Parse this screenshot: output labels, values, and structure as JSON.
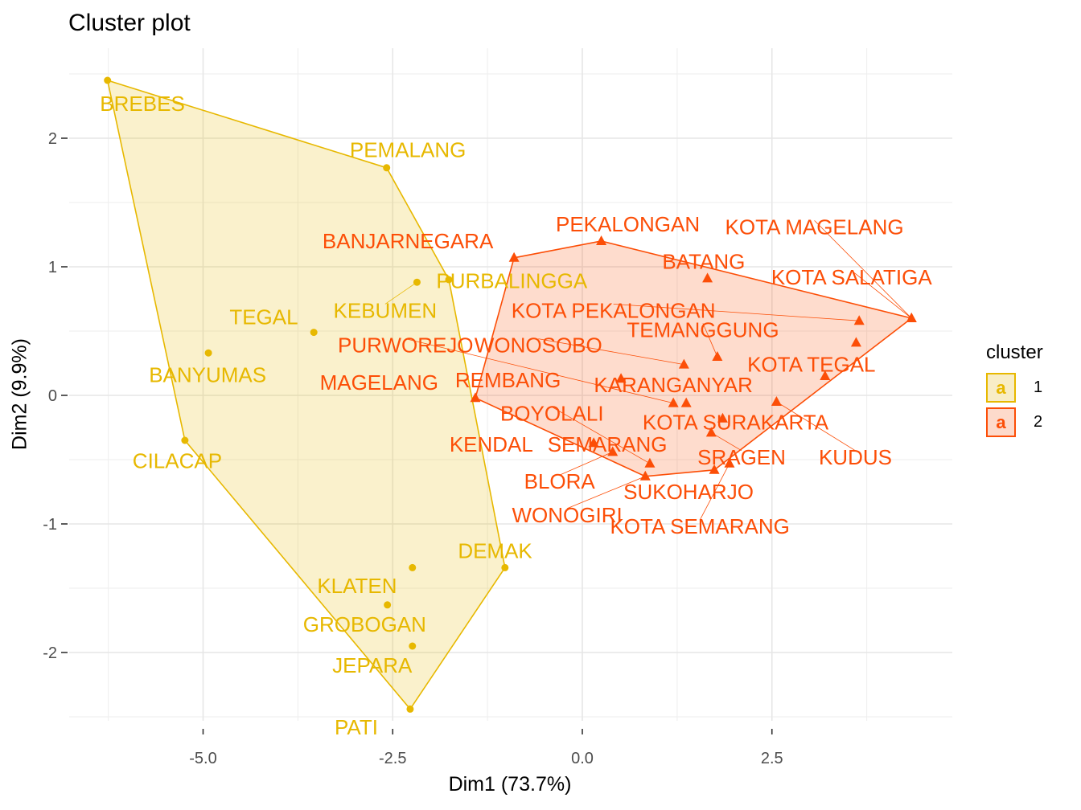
{
  "chart_data": {
    "type": "scatter",
    "title": "Cluster plot",
    "xlabel": "Dim1 (73.7%)",
    "ylabel": "Dim2 (9.9%)",
    "xlim": [
      -6.7,
      4.9
    ],
    "ylim": [
      -2.52,
      2.65
    ],
    "xticks": [
      -5.0,
      -2.5,
      0.0,
      2.5
    ],
    "xtick_labels": [
      "-5.0",
      "-2.5",
      "0.0",
      "2.5"
    ],
    "yticks": [
      -2,
      -1,
      0,
      1,
      2
    ],
    "ytick_labels": [
      "-2",
      "-1",
      "0",
      "1",
      "2"
    ],
    "grid": true,
    "legend": {
      "title": "cluster",
      "position": "right",
      "entries": [
        "1",
        "2"
      ]
    },
    "series": [
      {
        "name": "1",
        "color": "#E7B800",
        "fill": "#F8EDC6",
        "marker": "circle",
        "points": [
          {
            "label": "BREBES",
            "x": -6.26,
            "y": 2.45,
            "lx": -5.8,
            "ly": 2.27
          },
          {
            "label": "PEMALANG",
            "x": -2.58,
            "y": 1.77,
            "lx": -2.3,
            "ly": 1.91
          },
          {
            "label": "PURBALINGGA",
            "x": -1.76,
            "y": 0.9,
            "lx": -0.93,
            "ly": 0.89
          },
          {
            "label": "KEBUMEN",
            "x": -2.18,
            "y": 0.88,
            "lx": -2.6,
            "ly": 0.66,
            "leader": true
          },
          {
            "label": "TEGAL",
            "x": -3.54,
            "y": 0.49,
            "lx": -4.2,
            "ly": 0.61
          },
          {
            "label": "BANYUMAS",
            "x": -4.93,
            "y": 0.33,
            "lx": -4.94,
            "ly": 0.16
          },
          {
            "label": "CILACAP",
            "x": -5.24,
            "y": -0.35,
            "lx": -5.34,
            "ly": -0.51
          },
          {
            "label": "DEMAK",
            "x": -1.02,
            "y": -1.34,
            "lx": -1.15,
            "ly": -1.21
          },
          {
            "label": "KLATEN",
            "x": -2.24,
            "y": -1.34,
            "lx": -2.97,
            "ly": -1.48
          },
          {
            "label": "GROBOGAN",
            "x": -2.57,
            "y": -1.63,
            "lx": -2.87,
            "ly": -1.78
          },
          {
            "label": "JEPARA",
            "x": -2.24,
            "y": -1.95,
            "lx": -2.77,
            "ly": -2.1
          },
          {
            "label": "PATI",
            "x": -2.27,
            "y": -2.44,
            "lx": -2.98,
            "ly": -2.58
          }
        ],
        "hull": [
          "BREBES",
          "PEMALANG",
          "PURBALINGGA",
          "DEMAK",
          "PATI",
          "CILACAP"
        ]
      },
      {
        "name": "2",
        "color": "#FC4E07",
        "fill": "#FDDACB",
        "marker": "triangle",
        "points": [
          {
            "label": "PEKALONGAN",
            "x": 0.25,
            "y": 1.2,
            "lx": 0.6,
            "ly": 1.33
          },
          {
            "label": "BANJARNEGARA",
            "x": -0.9,
            "y": 1.07,
            "lx": -2.3,
            "ly": 1.2
          },
          {
            "label": "BATANG",
            "x": 1.65,
            "y": 0.91,
            "lx": 1.6,
            "ly": 1.04
          },
          {
            "label": "KOTA MAGELANG",
            "x": 4.34,
            "y": 0.6,
            "lx": 3.06,
            "ly": 1.31,
            "leader": true
          },
          {
            "label": "KOTA SALATIGA",
            "x": 4.34,
            "y": 0.6,
            "lx": 3.55,
            "ly": 0.92,
            "leader": true
          },
          {
            "label": "KOTA PEKALONGAN",
            "x": 3.65,
            "y": 0.58,
            "lx": 0.41,
            "ly": 0.66,
            "leader": true
          },
          {
            "label": "TEMANGGUNG",
            "x": 1.78,
            "y": 0.3,
            "lx": 1.59,
            "ly": 0.51,
            "leader": true
          },
          {
            "label": "KOTA TEGAL",
            "x": 3.61,
            "y": 0.41,
            "lx": 3.02,
            "ly": 0.24
          },
          {
            "label": "WONOSOBO",
            "x": 1.34,
            "y": 0.24,
            "lx": -0.58,
            "ly": 0.39,
            "leader": true
          },
          {
            "label": "PURWOREJO",
            "x": 1.2,
            "y": -0.06,
            "lx": -2.33,
            "ly": 0.39,
            "leader": true
          },
          {
            "label": "REMBANG",
            "x": 0.51,
            "y": 0.13,
            "lx": -0.98,
            "ly": 0.12
          },
          {
            "label": "MAGELANG",
            "x": -1.41,
            "y": -0.02,
            "lx": -2.68,
            "ly": 0.1
          },
          {
            "label": "KARANGANYAR",
            "x": 3.2,
            "y": 0.15,
            "lx": 1.2,
            "ly": 0.08
          },
          {
            "label": "KUDUS",
            "x": 2.56,
            "y": -0.05,
            "lx": 3.6,
            "ly": -0.48,
            "leader": true
          },
          {
            "label": "KOTA SURAKARTA",
            "x": 1.85,
            "y": -0.18,
            "lx": 2.02,
            "ly": -0.21
          },
          {
            "label": "SEMARANG",
            "x": 1.37,
            "y": -0.06,
            "lx": 0.33,
            "ly": -0.38
          },
          {
            "label": "SRAGEN",
            "x": 1.7,
            "y": -0.29,
            "lx": 2.1,
            "ly": -0.48,
            "leader": true
          },
          {
            "label": "KENDAL",
            "x": 0.15,
            "y": -0.37,
            "lx": -1.2,
            "ly": -0.38
          },
          {
            "label": "BLORA",
            "x": 0.4,
            "y": -0.44,
            "lx": -0.3,
            "ly": -0.67,
            "leader": true
          },
          {
            "label": "BOYOLALI",
            "x": 0.89,
            "y": -0.53,
            "lx": -0.4,
            "ly": -0.14,
            "leader": true
          },
          {
            "label": "WONOGIRI",
            "x": 0.83,
            "y": -0.63,
            "lx": -0.2,
            "ly": -0.93,
            "leader": true
          },
          {
            "label": "SUKOHARJO",
            "x": 1.74,
            "y": -0.58,
            "lx": 1.4,
            "ly": -0.75
          },
          {
            "label": "KOTA SEMARANG",
            "x": 1.94,
            "y": -0.53,
            "lx": 1.55,
            "ly": -1.02,
            "leader": true
          }
        ],
        "hull": [
          "BANJARNEGARA",
          "PEKALONGAN",
          "KOTA MAGELANG",
          "SUKOHARJO",
          "WONOGIRI",
          "MAGELANG"
        ]
      }
    ]
  },
  "legend": {
    "title": "cluster",
    "items": [
      {
        "label": "1",
        "glyph": "a",
        "color": "#E7B800",
        "fill": "#F8EDC6"
      },
      {
        "label": "2",
        "glyph": "a",
        "color": "#FC4E07",
        "fill": "#FDDACB"
      }
    ]
  }
}
